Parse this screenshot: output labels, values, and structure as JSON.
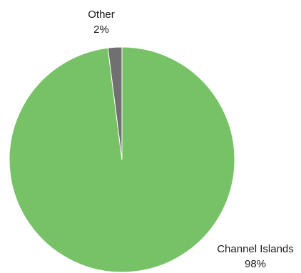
{
  "chart_data": {
    "type": "pie",
    "title": "",
    "slices": [
      {
        "label": "Channel Islands",
        "value": 98,
        "display": "98%",
        "color": "#77c267"
      },
      {
        "label": "Other",
        "value": 2,
        "display": "2%",
        "color": "#707070"
      }
    ],
    "start_angle_deg": 0,
    "direction": "clockwise",
    "legend": "none",
    "label_placement": "outside"
  }
}
